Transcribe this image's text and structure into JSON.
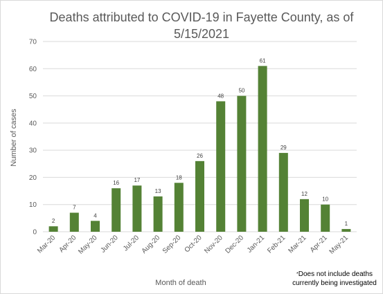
{
  "colors": {
    "bar": "#548235",
    "grid": "#d9d9d9",
    "text": "#595959"
  },
  "chart_data": {
    "type": "bar",
    "title": "Deaths attributed to COVID-19 in Fayette County, as of 5/15/2021",
    "xlabel": "Month of death",
    "ylabel": "Number of cases",
    "categories": [
      "Mar-20",
      "Apr-20",
      "May-20",
      "Jun-20",
      "Jul-20",
      "Aug-20",
      "Sep-20",
      "Oct-20",
      "Nov-20",
      "Dec-20",
      "Jan-21",
      "Feb-21",
      "Mar-21",
      "Apr-21",
      "May-21"
    ],
    "values": [
      2,
      7,
      4,
      16,
      17,
      13,
      18,
      26,
      48,
      50,
      61,
      29,
      12,
      10,
      1
    ],
    "ylim": [
      0,
      70
    ],
    "yticks": [
      0,
      10,
      20,
      30,
      40,
      50,
      60,
      70
    ],
    "grid": true,
    "legend": "none",
    "data_labels": true
  },
  "footnote": {
    "asterisk": "*",
    "text": "Does not include deaths currently being investigated"
  }
}
